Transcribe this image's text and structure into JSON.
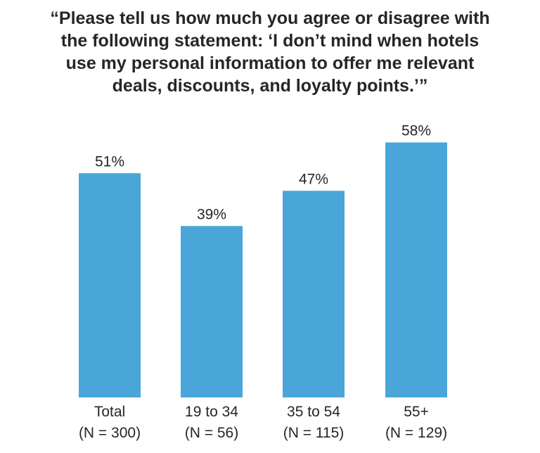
{
  "chart_data": {
    "type": "bar",
    "title_lines": [
      "“Please tell us how much you agree or disagree with",
      "the following statement: ‘I don’t mind when hotels",
      "use my personal information to offer me relevant",
      "deals, discounts, and loyalty points.’”"
    ],
    "categories": [
      {
        "label": "Total",
        "sublabel": "(N = 300)"
      },
      {
        "label": "19 to 34",
        "sublabel": "(N = 56)"
      },
      {
        "label": "35 to 54",
        "sublabel": "(N = 115)"
      },
      {
        "label": "55+",
        "sublabel": "(N = 129)"
      }
    ],
    "values": [
      51,
      39,
      47,
      58
    ],
    "value_labels": [
      "51%",
      "39%",
      "47%",
      "58%"
    ],
    "unit": "%",
    "bar_color": "#4aa6d8",
    "text_color": "#262626",
    "grid": false,
    "legend": "none"
  }
}
